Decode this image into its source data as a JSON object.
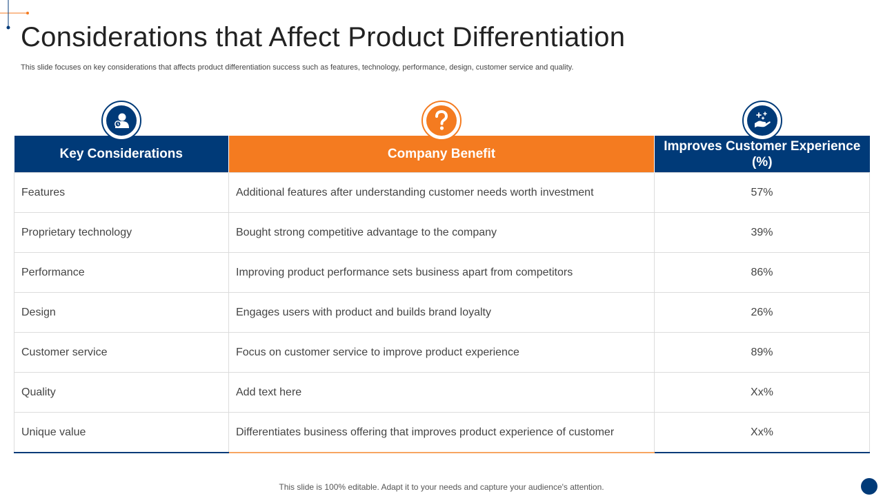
{
  "slide": {
    "title": "Considerations that Affect Product Differentiation",
    "subtitle": "This slide focuses on key considerations that affects product differentiation success such as features, technology, performance, design, customer service and quality.",
    "footer": "This slide is 100% editable. Adapt it to your needs and capture your audience's attention."
  },
  "icons": [
    "user-icon",
    "question-mark-icon",
    "hand-sparkle-icon"
  ],
  "colors": {
    "navy": "#003a78",
    "orange": "#f47b20",
    "border": "#dcdcdc"
  },
  "table": {
    "headers": [
      "Key Considerations",
      "Company Benefit",
      "Improves Customer Experience (%)"
    ],
    "rows": [
      [
        "Features",
        "Additional features after understanding customer needs worth investment",
        "57%"
      ],
      [
        "Proprietary technology",
        "Bought strong competitive advantage to the company",
        "39%"
      ],
      [
        "Performance",
        "Improving product performance sets business apart from competitors",
        "86%"
      ],
      [
        "Design",
        "Engages users with product and builds brand loyalty",
        "26%"
      ],
      [
        "Customer service",
        "Focus on customer service to improve product experience",
        "89%"
      ],
      [
        "Quality",
        "Add text here",
        "Xx%"
      ],
      [
        "Unique value",
        "Differentiates business offering that improves product experience of customer",
        "Xx%"
      ]
    ]
  }
}
